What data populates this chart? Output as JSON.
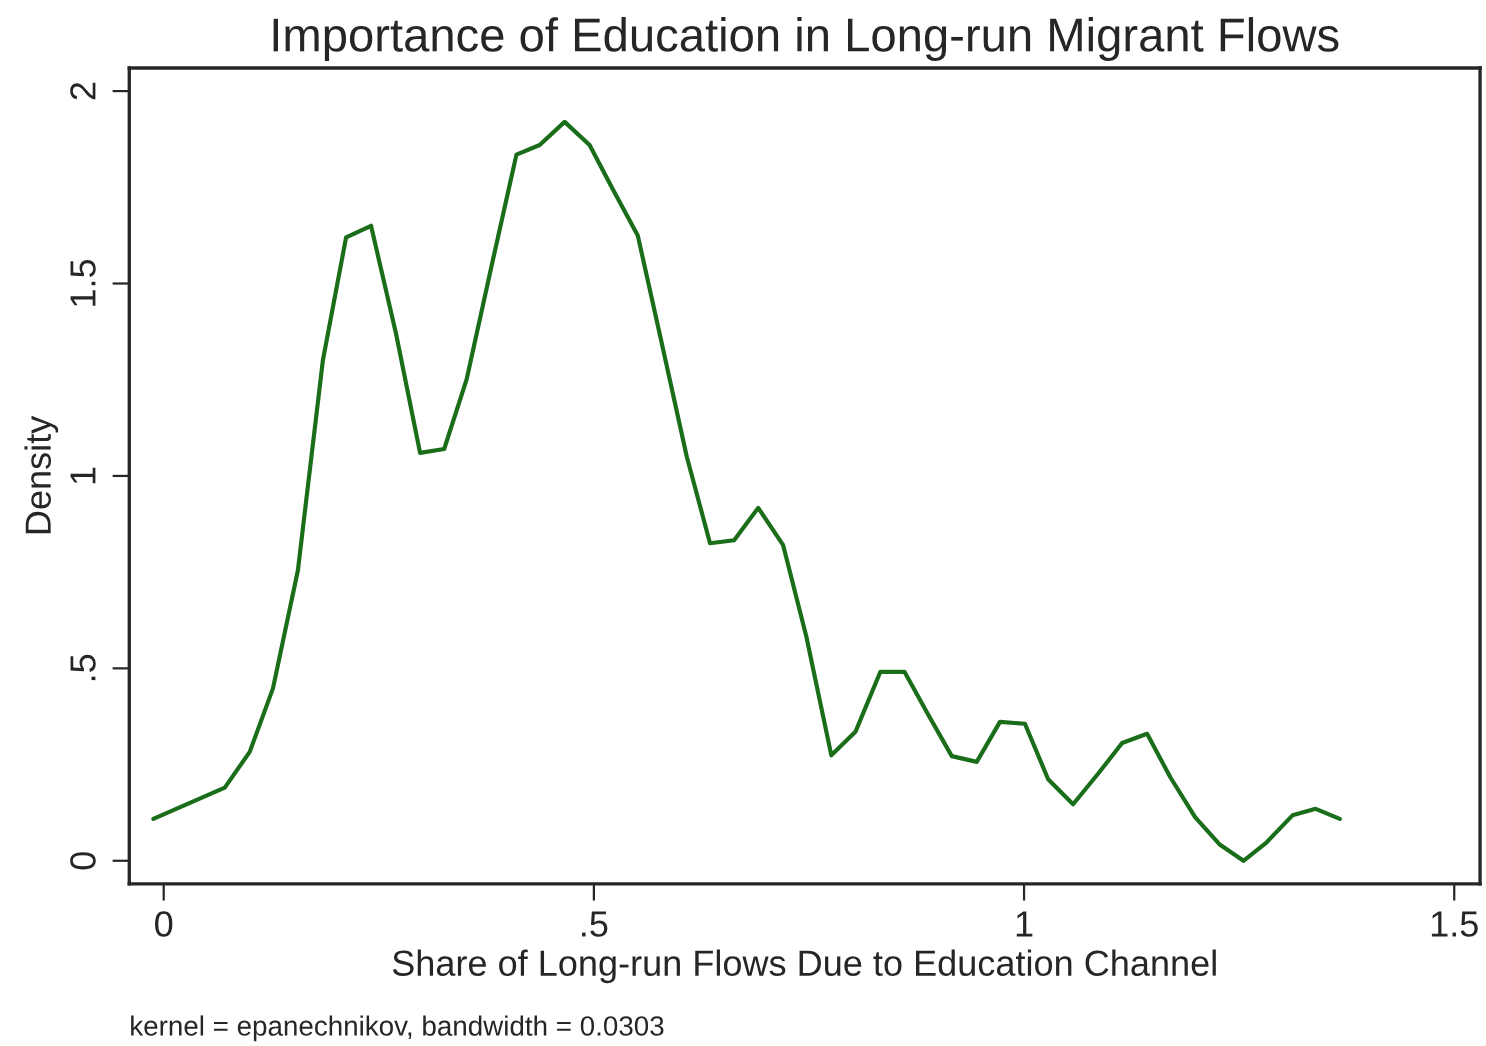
{
  "chart_data": {
    "type": "line",
    "title": "Importance of Education in Long-run Migrant Flows",
    "xlabel": "Share of Long-run Flows Due to Education Channel",
    "ylabel": "Density",
    "annotations": [
      "kernel = epanechnikov, bandwidth = 0.0303"
    ],
    "x": [
      -0.012,
      0.071,
      0.1,
      0.127,
      0.156,
      0.185,
      0.212,
      0.241,
      0.27,
      0.298,
      0.326,
      0.352,
      0.381,
      0.41,
      0.437,
      0.466,
      0.495,
      0.522,
      0.551,
      0.578,
      0.608,
      0.635,
      0.663,
      0.691,
      0.72,
      0.747,
      0.776,
      0.804,
      0.833,
      0.861,
      0.888,
      0.916,
      0.945,
      0.972,
      1.001,
      1.028,
      1.057,
      1.086,
      1.114,
      1.143,
      1.17,
      1.199,
      1.227,
      1.255,
      1.282,
      1.312,
      1.339,
      1.367
    ],
    "series": [
      {
        "color": "#1a6e1a",
        "values": [
          0.109,
          0.19,
          0.283,
          0.448,
          0.755,
          1.3,
          1.62,
          1.65,
          1.37,
          1.06,
          1.07,
          1.25,
          1.545,
          1.835,
          1.86,
          1.92,
          1.86,
          1.745,
          1.625,
          1.354,
          1.05,
          0.825,
          0.833,
          0.917,
          0.82,
          0.582,
          0.274,
          0.335,
          0.491,
          0.491,
          0.382,
          0.272,
          0.257,
          0.361,
          0.356,
          0.212,
          0.147,
          0.226,
          0.306,
          0.33,
          0.217,
          0.113,
          0.043,
          0.0,
          0.048,
          0.118,
          0.135,
          0.109
        ]
      }
    ],
    "xlim": [
      -0.04,
      1.53
    ],
    "ylim": [
      -0.06,
      2.06
    ],
    "xticks": [
      0,
      {
        "value": 0.5,
        "label": ".5"
      },
      1,
      1.5
    ],
    "yticks": [
      0,
      {
        "value": 0.5,
        "label": ".5"
      },
      1,
      1.5,
      2
    ],
    "grid": false,
    "legend": false,
    "marker": "none",
    "line_style": "solid"
  }
}
